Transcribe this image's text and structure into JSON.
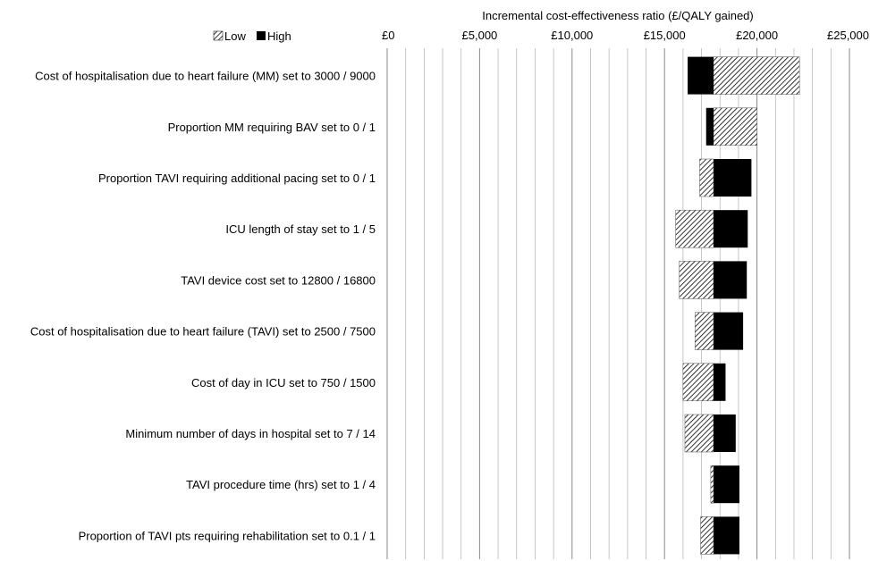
{
  "chart_data": {
    "type": "bar",
    "subtype": "tornado",
    "xlabel": "Incremental cost-effectiveness ratio (£/QALY gained)",
    "xlim": [
      0,
      25000
    ],
    "x_ticks": [
      0,
      5000,
      10000,
      15000,
      20000,
      25000
    ],
    "x_tick_labels": [
      "£0",
      "£5,000",
      "£10,000",
      "£15,000",
      "£20,000",
      "£25,000"
    ],
    "axis_position": "top",
    "base_value": 17650,
    "grid": true,
    "legend": {
      "placement": "top-left",
      "entries": [
        {
          "name": "Low",
          "pattern": "diagonal-hatch",
          "color": "#ffffff"
        },
        {
          "name": "High",
          "color": "#000000"
        }
      ]
    },
    "categories": [
      "Cost of hospitalisation due to heart failure (MM) set to 3000 / 9000",
      "Proportion MM requiring BAV set to 0 / 1",
      "Proportion TAVI requiring additional pacing set to 0 / 1",
      "ICU length of stay set to 1 / 5",
      "TAVI device cost set to 12800 / 16800",
      "Cost of hospitalisation due to heart failure (TAVI) set to 2500 / 7500",
      "Cost of day in ICU set to 750 / 1500",
      "Minimum number of days in hospital set to 7 / 14",
      "TAVI procedure time (hrs) set to 1 / 4",
      "Proportion of TAVI pts requiring rehabilitation set to 0.1 / 1"
    ],
    "series": [
      {
        "name": "Low",
        "values": [
          22300,
          20000,
          16900,
          15600,
          15800,
          16650,
          16000,
          16100,
          17500,
          16950
        ]
      },
      {
        "name": "High",
        "values": [
          16250,
          17250,
          19700,
          19500,
          19450,
          19250,
          18300,
          18850,
          19050,
          19050
        ]
      }
    ]
  }
}
